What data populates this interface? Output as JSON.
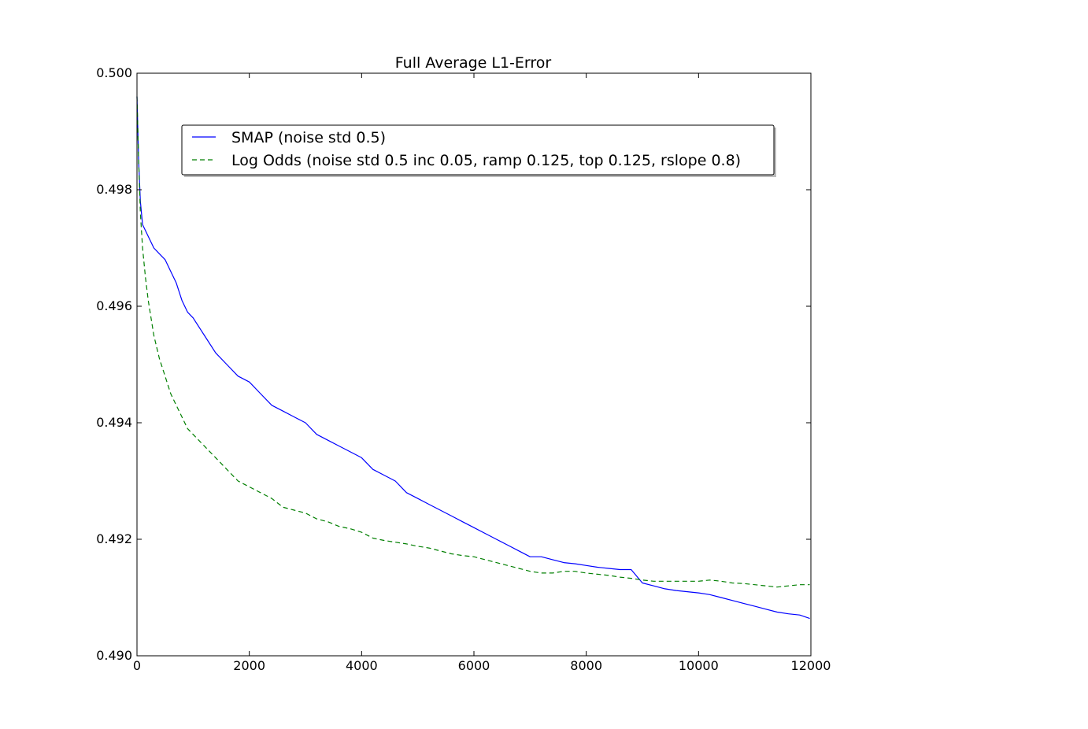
{
  "chart_data": {
    "type": "line",
    "title": "Full Average L1-Error",
    "xlabel": "",
    "ylabel": "",
    "xlim": [
      0,
      12000
    ],
    "ylim": [
      0.49,
      0.5
    ],
    "xticks": [
      "0",
      "2000",
      "4000",
      "6000",
      "8000",
      "10000",
      "12000"
    ],
    "yticks": [
      "0.490",
      "0.492",
      "0.494",
      "0.496",
      "0.498",
      "0.500"
    ],
    "grid": false,
    "legend_position": "upper-center",
    "series": [
      {
        "name": "SMAP (noise std 0.5)",
        "color": "#0000ff",
        "style": "solid",
        "x": [
          0,
          30,
          60,
          100,
          150,
          200,
          300,
          400,
          500,
          600,
          700,
          800,
          900,
          1000,
          1200,
          1400,
          1600,
          1800,
          2000,
          2200,
          2400,
          2600,
          2800,
          3000,
          3200,
          3400,
          3600,
          3800,
          4000,
          4200,
          4400,
          4600,
          4800,
          5000,
          5200,
          5400,
          5600,
          5800,
          6000,
          6200,
          6400,
          6600,
          6800,
          7000,
          7200,
          7400,
          7600,
          7800,
          8000,
          8200,
          8400,
          8600,
          8800,
          9000,
          9200,
          9400,
          9600,
          9800,
          10000,
          10200,
          10400,
          10600,
          10800,
          11000,
          11200,
          11400,
          11600,
          11800,
          11980
        ],
        "y": [
          0.4996,
          0.4985,
          0.4978,
          0.4974,
          0.4973,
          0.4972,
          0.497,
          0.4969,
          0.4968,
          0.4966,
          0.4964,
          0.4961,
          0.4959,
          0.4958,
          0.4955,
          0.4952,
          0.495,
          0.4948,
          0.4947,
          0.4945,
          0.4943,
          0.4942,
          0.4941,
          0.494,
          0.4938,
          0.4937,
          0.4936,
          0.4935,
          0.4934,
          0.4932,
          0.4931,
          0.493,
          0.4928,
          0.4927,
          0.4926,
          0.4925,
          0.4924,
          0.4923,
          0.4922,
          0.4921,
          0.492,
          0.4919,
          0.4918,
          0.4917,
          0.4917,
          0.49165,
          0.4916,
          0.49158,
          0.49155,
          0.49152,
          0.4915,
          0.49148,
          0.49148,
          0.49125,
          0.4912,
          0.49115,
          0.49112,
          0.4911,
          0.49108,
          0.49105,
          0.491,
          0.49095,
          0.4909,
          0.49085,
          0.4908,
          0.49075,
          0.49072,
          0.4907,
          0.49064
        ]
      },
      {
        "name": "Log Odds (noise std 0.5 inc 0.05, ramp 0.125, top 0.125, rslope 0.8)",
        "color": "#007f00",
        "style": "dashed",
        "x": [
          0,
          30,
          60,
          100,
          150,
          200,
          300,
          400,
          500,
          600,
          700,
          800,
          900,
          1000,
          1200,
          1400,
          1600,
          1800,
          2000,
          2200,
          2400,
          2600,
          2800,
          3000,
          3200,
          3400,
          3600,
          3800,
          4000,
          4200,
          4400,
          4600,
          4800,
          5000,
          5200,
          5400,
          5600,
          5800,
          6000,
          6200,
          6400,
          6600,
          6800,
          7000,
          7200,
          7400,
          7600,
          7800,
          8000,
          8200,
          8400,
          8600,
          8800,
          9000,
          9200,
          9400,
          9600,
          9800,
          10000,
          10200,
          10400,
          10600,
          10800,
          11000,
          11200,
          11400,
          11600,
          11800,
          11980
        ],
        "y": [
          0.4996,
          0.4985,
          0.4976,
          0.497,
          0.4965,
          0.4961,
          0.4955,
          0.4951,
          0.4948,
          0.4945,
          0.4943,
          0.4941,
          0.4939,
          0.4938,
          0.4936,
          0.4934,
          0.4932,
          0.493,
          0.4929,
          0.4928,
          0.4927,
          0.49255,
          0.4925,
          0.49245,
          0.49235,
          0.4923,
          0.49222,
          0.49218,
          0.49212,
          0.49202,
          0.49198,
          0.49195,
          0.49192,
          0.49188,
          0.49185,
          0.4918,
          0.49175,
          0.49172,
          0.4917,
          0.49165,
          0.4916,
          0.49155,
          0.4915,
          0.49145,
          0.49142,
          0.49142,
          0.49145,
          0.49145,
          0.49142,
          0.4914,
          0.49138,
          0.49135,
          0.49133,
          0.4913,
          0.49128,
          0.49128,
          0.49128,
          0.49128,
          0.49128,
          0.4913,
          0.49128,
          0.49125,
          0.49124,
          0.49122,
          0.4912,
          0.49118,
          0.4912,
          0.49122,
          0.49122
        ]
      }
    ]
  }
}
